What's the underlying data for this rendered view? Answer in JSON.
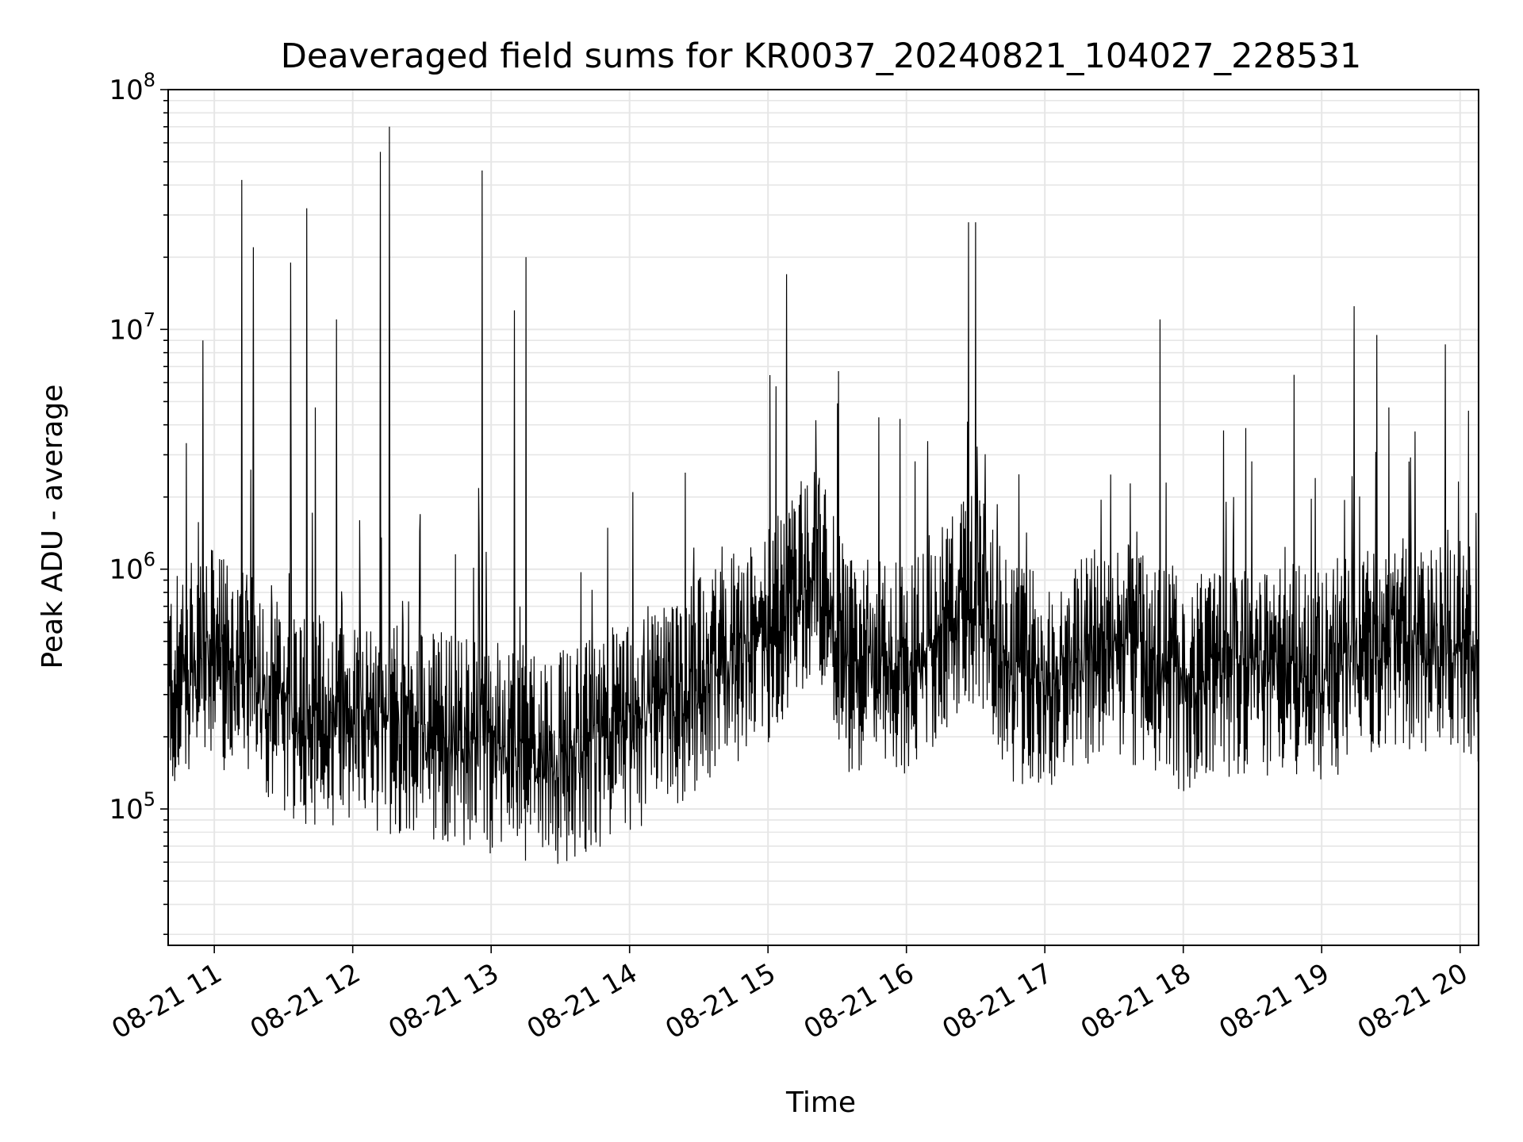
{
  "chart_data": {
    "type": "line",
    "title": "Deaveraged field sums for KR0037_20240821_104027_228531",
    "xlabel": "Time",
    "ylabel": "Peak ADU - average",
    "y_scale": "log",
    "ylim": [
      27000,
      100000000
    ],
    "y_ticks": [
      {
        "value": 100000,
        "base": "10",
        "exp": "5"
      },
      {
        "value": 1000000,
        "base": "10",
        "exp": "6"
      },
      {
        "value": 10000000,
        "base": "10",
        "exp": "7"
      },
      {
        "value": 100000000,
        "base": "10",
        "exp": "8"
      }
    ],
    "xlim": [
      "2024-08-21 10:40",
      "2024-08-21 20:08"
    ],
    "x_ticks": [
      {
        "time": "2024-08-21 11:00",
        "label": "08-21 11"
      },
      {
        "time": "2024-08-21 12:00",
        "label": "08-21 12"
      },
      {
        "time": "2024-08-21 13:00",
        "label": "08-21 13"
      },
      {
        "time": "2024-08-21 14:00",
        "label": "08-21 14"
      },
      {
        "time": "2024-08-21 15:00",
        "label": "08-21 15"
      },
      {
        "time": "2024-08-21 16:00",
        "label": "08-21 16"
      },
      {
        "time": "2024-08-21 17:00",
        "label": "08-21 17"
      },
      {
        "time": "2024-08-21 18:00",
        "label": "08-21 18"
      },
      {
        "time": "2024-08-21 19:00",
        "label": "08-21 19"
      },
      {
        "time": "2024-08-21 20:00",
        "label": "08-21 20"
      }
    ],
    "grid": true,
    "line_color": "#000000",
    "grid_color": "#e6e6e6",
    "series": [
      {
        "values": [
          {
            "t": "2024-08-21 10:40",
            "v": 400000
          },
          {
            "t": "2024-08-21 11:00",
            "v": 550000
          },
          {
            "t": "2024-08-21 11:30",
            "v": 320000
          },
          {
            "t": "2024-08-21 12:00",
            "v": 280000
          },
          {
            "t": "2024-08-21 12:30",
            "v": 260000
          },
          {
            "t": "2024-08-21 13:00",
            "v": 230000
          },
          {
            "t": "2024-08-21 13:30",
            "v": 200000
          },
          {
            "t": "2024-08-21 14:00",
            "v": 280000
          },
          {
            "t": "2024-08-21 14:30",
            "v": 420000
          },
          {
            "t": "2024-08-21 15:00",
            "v": 650000
          },
          {
            "t": "2024-08-21 15:20",
            "v": 1300000
          },
          {
            "t": "2024-08-21 15:35",
            "v": 500000
          },
          {
            "t": "2024-08-21 16:00",
            "v": 480000
          },
          {
            "t": "2024-08-21 16:30",
            "v": 1000000
          },
          {
            "t": "2024-08-21 16:45",
            "v": 450000
          },
          {
            "t": "2024-08-21 17:00",
            "v": 430000
          },
          {
            "t": "2024-08-21 17:30",
            "v": 600000
          },
          {
            "t": "2024-08-21 18:00",
            "v": 400000
          },
          {
            "t": "2024-08-21 18:30",
            "v": 480000
          },
          {
            "t": "2024-08-21 19:00",
            "v": 450000
          },
          {
            "t": "2024-08-21 19:30",
            "v": 650000
          },
          {
            "t": "2024-08-21 20:08",
            "v": 550000
          }
        ],
        "spikes": [
          {
            "t": "2024-08-21 10:55",
            "v": 9000000
          },
          {
            "t": "2024-08-21 11:12",
            "v": 42000000
          },
          {
            "t": "2024-08-21 11:17",
            "v": 22000000
          },
          {
            "t": "2024-08-21 11:33",
            "v": 19000000
          },
          {
            "t": "2024-08-21 11:40",
            "v": 32000000
          },
          {
            "t": "2024-08-21 11:53",
            "v": 11000000
          },
          {
            "t": "2024-08-21 12:12",
            "v": 55000000
          },
          {
            "t": "2024-08-21 12:16",
            "v": 70000000
          },
          {
            "t": "2024-08-21 12:56",
            "v": 46000000
          },
          {
            "t": "2024-08-21 13:10",
            "v": 12000000
          },
          {
            "t": "2024-08-21 13:15",
            "v": 20000000
          },
          {
            "t": "2024-08-21 15:08",
            "v": 17000000
          },
          {
            "t": "2024-08-21 16:27",
            "v": 28000000
          },
          {
            "t": "2024-08-21 16:30",
            "v": 28000000
          },
          {
            "t": "2024-08-21 17:50",
            "v": 11000000
          },
          {
            "t": "2024-08-21 19:14",
            "v": 12500000
          }
        ]
      }
    ]
  }
}
